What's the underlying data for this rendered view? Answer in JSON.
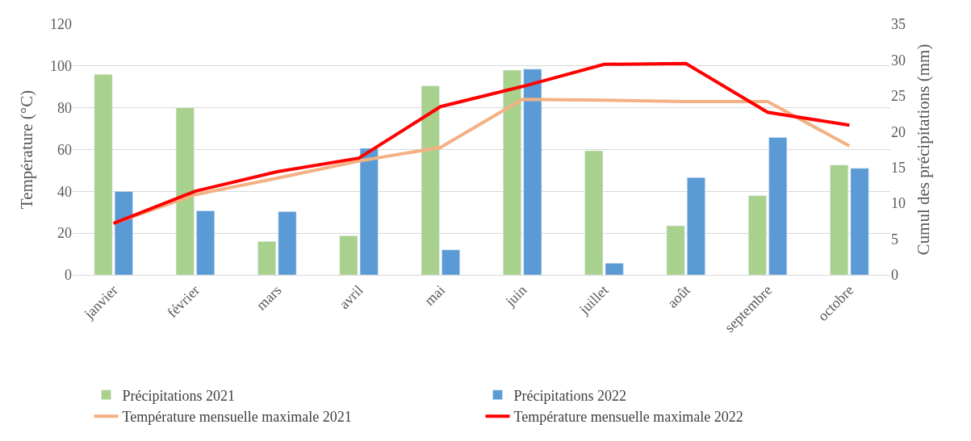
{
  "chart_data": {
    "type": "bar",
    "ylabel": "Température (°C)",
    "y2label": "Cumul des précipitations (mm)",
    "categories": [
      "janvier",
      "février",
      "mars",
      "avril",
      "mai",
      "juin",
      "juillet",
      "août",
      "septembre",
      "octobre"
    ],
    "series": [
      {
        "name": "Précipitations 2021",
        "color": "#a9d18e",
        "values": [
          96,
          80,
          16,
          18.7,
          90.5,
          98,
          59.4,
          23.5,
          37.9,
          52.6
        ]
      },
      {
        "name": "Précipitations 2022",
        "color": "#5b9bd5",
        "values": [
          39.9,
          30.7,
          30.3,
          60.6,
          12,
          98.5,
          5.6,
          46.6,
          65.8,
          51
        ]
      },
      {
        "name": "Température mensuelle maximale 2021",
        "color": "#f4b183",
        "type": "line",
        "axis": "y2",
        "values": [
          7.2,
          11.2,
          13.5,
          15.9,
          17.8,
          24.5,
          24.4,
          24.2,
          24.2,
          18.0
        ]
      },
      {
        "name": "Température mensuelle maximale 2022",
        "color": "#ff0000",
        "type": "line",
        "axis": "y2",
        "values": [
          7.2,
          11.7,
          14.4,
          16.3,
          23.5,
          26.3,
          29.4,
          29.5,
          22.7,
          20.9
        ]
      }
    ],
    "ylim": [
      0,
      120
    ],
    "yticks": [
      0,
      20,
      40,
      60,
      80,
      100,
      120
    ],
    "y2lim": [
      0,
      35
    ],
    "y2ticks": [
      0,
      5,
      10,
      15,
      20,
      25,
      30,
      35
    ],
    "grid": "y",
    "legend": "bottom"
  }
}
